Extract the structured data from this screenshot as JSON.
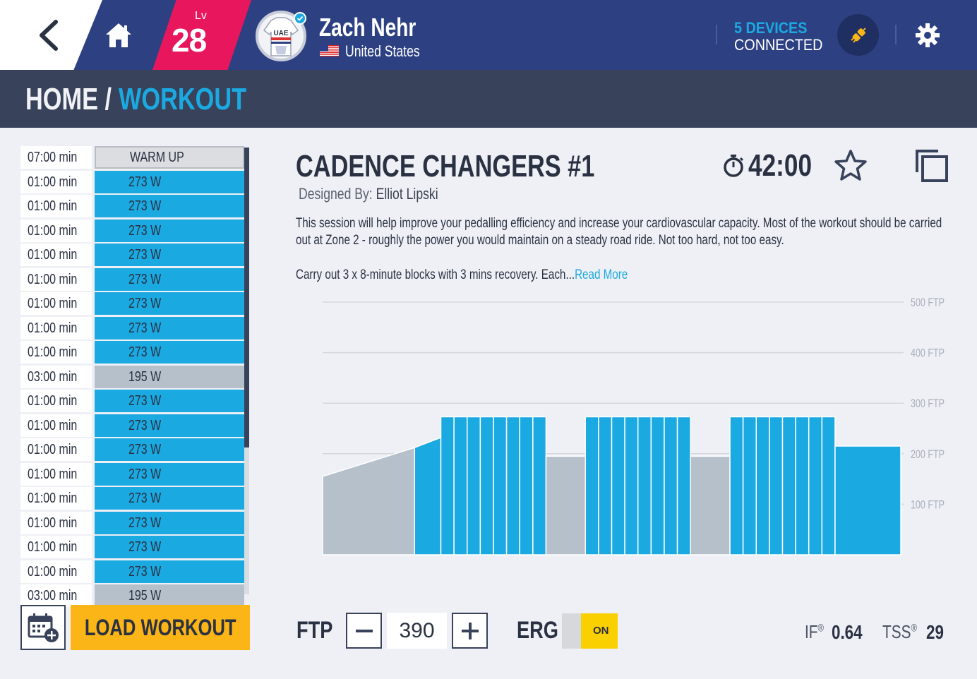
{
  "header": {
    "level_prefix": "Lv",
    "level": "28",
    "user_name": "Zach Nehr",
    "country": "United States",
    "devices_count": "5 DEVICES",
    "devices_label": "CONNECTED",
    "avatar_text": "UAE"
  },
  "breadcrumb": {
    "home": "HOME /",
    "current": "WORKOUT"
  },
  "intervals": [
    {
      "duration": "07:00 min",
      "power": "WARM UP",
      "kind": "warm"
    },
    {
      "duration": "01:00 min",
      "power": "273 W",
      "kind": "work"
    },
    {
      "duration": "01:00 min",
      "power": "273 W",
      "kind": "work"
    },
    {
      "duration": "01:00 min",
      "power": "273 W",
      "kind": "work"
    },
    {
      "duration": "01:00 min",
      "power": "273 W",
      "kind": "work"
    },
    {
      "duration": "01:00 min",
      "power": "273 W",
      "kind": "work"
    },
    {
      "duration": "01:00 min",
      "power": "273 W",
      "kind": "work"
    },
    {
      "duration": "01:00 min",
      "power": "273 W",
      "kind": "work"
    },
    {
      "duration": "01:00 min",
      "power": "273 W",
      "kind": "work"
    },
    {
      "duration": "03:00 min",
      "power": "195 W",
      "kind": "rest"
    },
    {
      "duration": "01:00 min",
      "power": "273 W",
      "kind": "work"
    },
    {
      "duration": "01:00 min",
      "power": "273 W",
      "kind": "work"
    },
    {
      "duration": "01:00 min",
      "power": "273 W",
      "kind": "work"
    },
    {
      "duration": "01:00 min",
      "power": "273 W",
      "kind": "work"
    },
    {
      "duration": "01:00 min",
      "power": "273 W",
      "kind": "work"
    },
    {
      "duration": "01:00 min",
      "power": "273 W",
      "kind": "work"
    },
    {
      "duration": "01:00 min",
      "power": "273 W",
      "kind": "work"
    },
    {
      "duration": "01:00 min",
      "power": "273 W",
      "kind": "work"
    },
    {
      "duration": "03:00 min",
      "power": "195 W",
      "kind": "rest"
    }
  ],
  "actions": {
    "load_workout": "LOAD WORKOUT"
  },
  "workout": {
    "title": "CADENCE CHANGERS #1",
    "designed_by_label": "Designed By:",
    "designer": "Elliot Lipski",
    "duration": "42:00",
    "description": "This session will help improve your pedalling efficiency and increase your cardiovascular capacity. Most of the workout should be carried out at Zone 2 - roughly the power you would maintain on a steady road ride. Not too hard, not too easy.",
    "description_more": "Carry out 3 x 8-minute blocks with 3 mins recovery. Each...",
    "read_more": "Read More"
  },
  "controls": {
    "ftp_label": "FTP",
    "ftp_value": "390",
    "erg_label": "ERG",
    "erg_state": "ON",
    "if_label": "IF",
    "if_value": "0.64",
    "tss_label": "TSS",
    "tss_value": "29"
  },
  "colors": {
    "header_bg": "#2d4182",
    "level_badge": "#e8175d",
    "accent": "#1ba9e1",
    "work_block": "#1ba9e1",
    "rest_block": "#b5c0cb",
    "load_button": "#fbb516",
    "erg_on": "#fbd000"
  },
  "chart_data": {
    "type": "area",
    "y_ticks": [
      "100 FTP",
      "200 FTP",
      "300 FTP",
      "400 FTP",
      "500 FTP"
    ],
    "ylim": [
      0,
      500
    ],
    "grid": true,
    "segments": [
      {
        "kind": "warm",
        "duration_min": 7,
        "start": 155,
        "end": 212
      },
      {
        "kind": "work",
        "duration_min": 2,
        "start": 212,
        "end": 232
      },
      {
        "kind": "work",
        "duration_min": 1,
        "value": 273
      },
      {
        "kind": "work",
        "duration_min": 1,
        "value": 273
      },
      {
        "kind": "work",
        "duration_min": 1,
        "value": 273
      },
      {
        "kind": "work",
        "duration_min": 1,
        "value": 273
      },
      {
        "kind": "work",
        "duration_min": 1,
        "value": 273
      },
      {
        "kind": "work",
        "duration_min": 1,
        "value": 273
      },
      {
        "kind": "work",
        "duration_min": 1,
        "value": 273
      },
      {
        "kind": "work",
        "duration_min": 1,
        "value": 273
      },
      {
        "kind": "rest",
        "duration_min": 3,
        "value": 195
      },
      {
        "kind": "work",
        "duration_min": 1,
        "value": 273
      },
      {
        "kind": "work",
        "duration_min": 1,
        "value": 273
      },
      {
        "kind": "work",
        "duration_min": 1,
        "value": 273
      },
      {
        "kind": "work",
        "duration_min": 1,
        "value": 273
      },
      {
        "kind": "work",
        "duration_min": 1,
        "value": 273
      },
      {
        "kind": "work",
        "duration_min": 1,
        "value": 273
      },
      {
        "kind": "work",
        "duration_min": 1,
        "value": 273
      },
      {
        "kind": "work",
        "duration_min": 1,
        "value": 273
      },
      {
        "kind": "rest",
        "duration_min": 3,
        "value": 195
      },
      {
        "kind": "work",
        "duration_min": 1,
        "value": 273
      },
      {
        "kind": "work",
        "duration_min": 1,
        "value": 273
      },
      {
        "kind": "work",
        "duration_min": 1,
        "value": 273
      },
      {
        "kind": "work",
        "duration_min": 1,
        "value": 273
      },
      {
        "kind": "work",
        "duration_min": 1,
        "value": 273
      },
      {
        "kind": "work",
        "duration_min": 1,
        "value": 273
      },
      {
        "kind": "work",
        "duration_min": 1,
        "value": 273
      },
      {
        "kind": "work",
        "duration_min": 1,
        "value": 273
      },
      {
        "kind": "cooldown",
        "duration_min": 5,
        "value": 215
      }
    ]
  }
}
